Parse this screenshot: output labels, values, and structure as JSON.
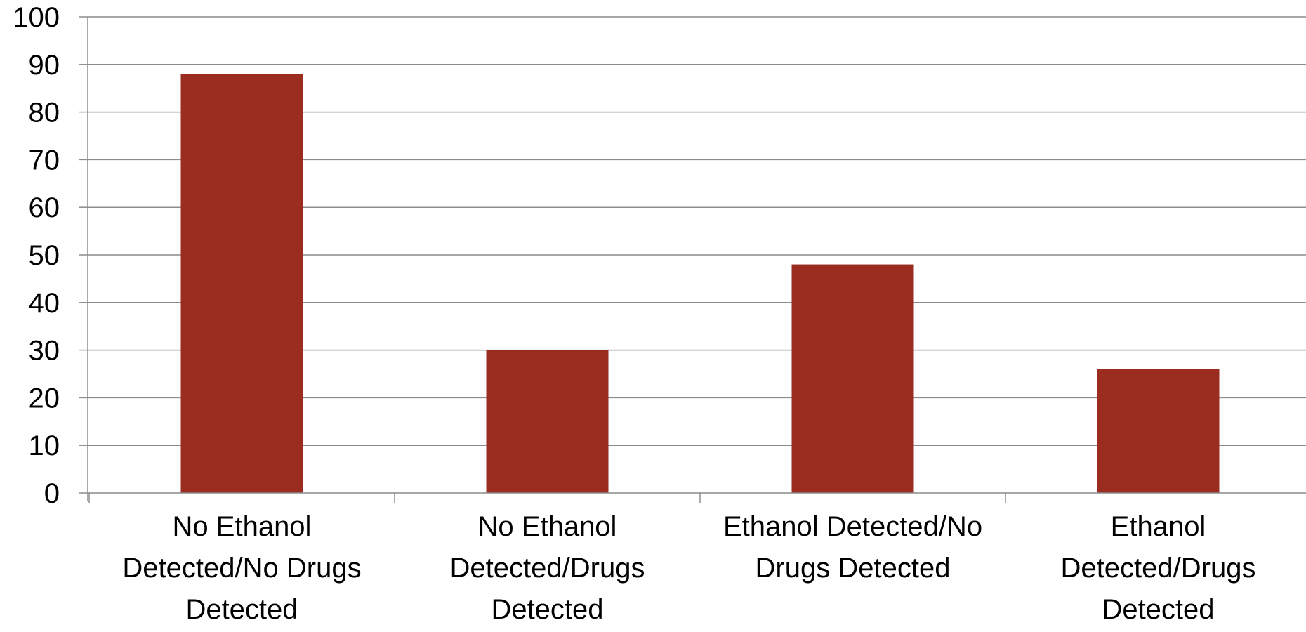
{
  "chart_data": {
    "type": "bar",
    "categories": [
      [
        "No Ethanol",
        "Detected/No Drugs",
        "Detected"
      ],
      [
        "No Ethanol",
        "Detected/Drugs",
        "Detected"
      ],
      [
        "Ethanol Detected/No",
        "Drugs Detected"
      ],
      [
        "Ethanol",
        "Detected/Drugs",
        "Detected"
      ]
    ],
    "values": [
      88,
      30,
      48,
      26
    ],
    "ylim": [
      0,
      100
    ],
    "ytick_step": 10,
    "title": "",
    "xlabel": "",
    "ylabel": "",
    "grid": true,
    "legend": "none",
    "bar_color": "#9A2C20",
    "grid_color": "#8C8C8C",
    "axis_color": "#8C8C8C"
  }
}
